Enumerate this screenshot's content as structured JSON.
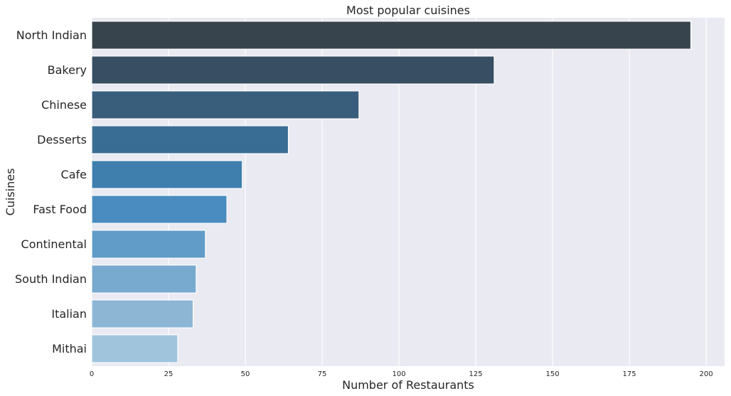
{
  "chart_data": {
    "type": "bar",
    "orientation": "horizontal",
    "title": "Most popular cuisines",
    "xlabel": "Number of Restaurants",
    "ylabel": "Cuisines",
    "categories": [
      "North Indian",
      "Bakery",
      "Chinese",
      "Desserts",
      "Cafe",
      "Fast Food",
      "Continental",
      "South Indian",
      "Italian",
      "Mithai"
    ],
    "values": [
      195,
      131,
      87,
      64,
      49,
      44,
      37,
      34,
      33,
      28
    ],
    "xlim": [
      0,
      206
    ],
    "xticks": [
      0,
      25,
      50,
      75,
      100,
      125,
      150,
      175,
      200
    ],
    "grid": true,
    "colors": [
      "#37444d",
      "#374e63",
      "#395e7c",
      "#3a6d93",
      "#3f7fae",
      "#4a8cbf",
      "#619cc8",
      "#78a9cf",
      "#8db6d5",
      "#9fc4dc"
    ],
    "background": "#eaeaf2"
  }
}
